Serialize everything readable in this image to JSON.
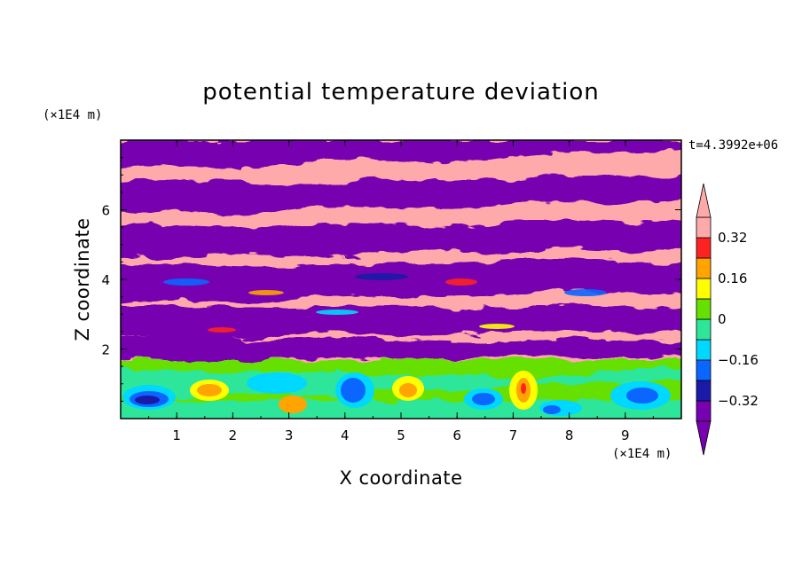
{
  "chart_data": {
    "type": "heatmap",
    "title": "potential temperature deviation",
    "xlabel": "X coordinate",
    "ylabel": "Z coordinate",
    "x_unit": "(×1E4 m)",
    "y_unit": "(×1E4 m)",
    "time_label": "t=4.3992e+06",
    "xlim": [
      0,
      10
    ],
    "ylim": [
      0,
      8
    ],
    "x_ticks": [
      "1",
      "2",
      "3",
      "4",
      "5",
      "6",
      "7",
      "8",
      "9"
    ],
    "y_ticks": [
      "2",
      "4",
      "6"
    ],
    "colorbar": {
      "levels": [
        -0.4,
        -0.32,
        -0.24,
        -0.16,
        -0.08,
        0,
        0.08,
        0.16,
        0.24,
        0.32,
        0.4
      ],
      "labels": [
        "0.32",
        "0.16",
        "0",
        "−0.16",
        "−0.32"
      ],
      "label_values": [
        0.32,
        0.16,
        0,
        -0.16,
        -0.32
      ],
      "colors": [
        "#7700b0",
        "#1a1aa8",
        "#0a66ff",
        "#00d8ff",
        "#2ee69a",
        "#66e000",
        "#ffff00",
        "#ffa400",
        "#ff2222",
        "#ffaaaa"
      ],
      "extend": "both"
    }
  }
}
